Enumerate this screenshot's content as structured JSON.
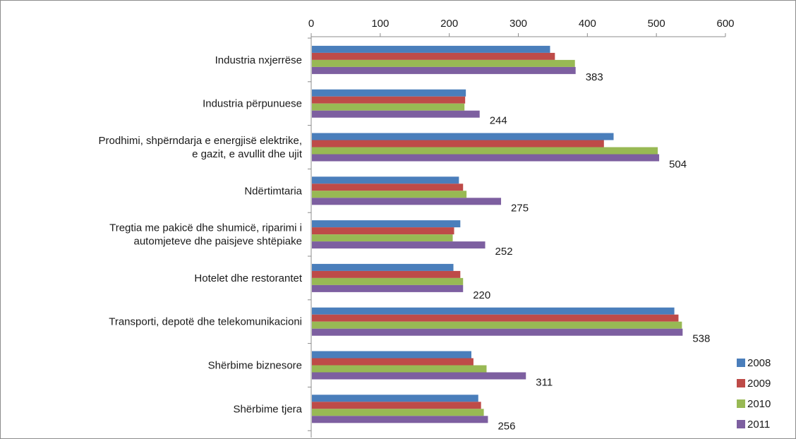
{
  "chart_data": {
    "type": "bar",
    "orientation": "horizontal",
    "title": "",
    "xlabel": "",
    "ylabel": "",
    "xlim": [
      0,
      600
    ],
    "x_ticks": [
      "0",
      "100",
      "200",
      "300",
      "400",
      "500",
      "600"
    ],
    "x_axis_position": "top",
    "grid": false,
    "legend_position": "right-bottom",
    "categories": [
      [
        "Industria nxjerrëse"
      ],
      [
        "Industria përpunuese"
      ],
      [
        "Prodhimi, shpërndarja e energjisë elektrike,",
        "e gazit, e avullit dhe ujit"
      ],
      [
        "Ndërtimtaria"
      ],
      [
        "Tregtia me pakicë dhe shumicë, riparimi i",
        "automjeteve dhe paisjeve shtëpiake"
      ],
      [
        "Hotelet dhe restorantet"
      ],
      [
        "Transporti, depotë dhe telekomunikacioni"
      ],
      [
        "Shërbime biznesore"
      ],
      [
        "Shërbime tjera"
      ]
    ],
    "series": [
      {
        "name": "2008",
        "color": "#4a7ebb",
        "values": [
          346,
          224,
          438,
          214,
          216,
          206,
          526,
          232,
          242
        ]
      },
      {
        "name": "2009",
        "color": "#be4b48",
        "values": [
          353,
          223,
          424,
          220,
          207,
          216,
          532,
          235,
          246
        ]
      },
      {
        "name": "2010",
        "color": "#98b954",
        "values": [
          382,
          222,
          502,
          225,
          205,
          220,
          537,
          254,
          250
        ]
      },
      {
        "name": "2011",
        "color": "#7d5fa0",
        "values": [
          383,
          244,
          504,
          275,
          252,
          220,
          538,
          311,
          256
        ]
      }
    ],
    "data_labels_series": "2011",
    "data_labels": [
      "383",
      "244",
      "504",
      "275",
      "252",
      "220",
      "538",
      "311",
      "256"
    ]
  }
}
